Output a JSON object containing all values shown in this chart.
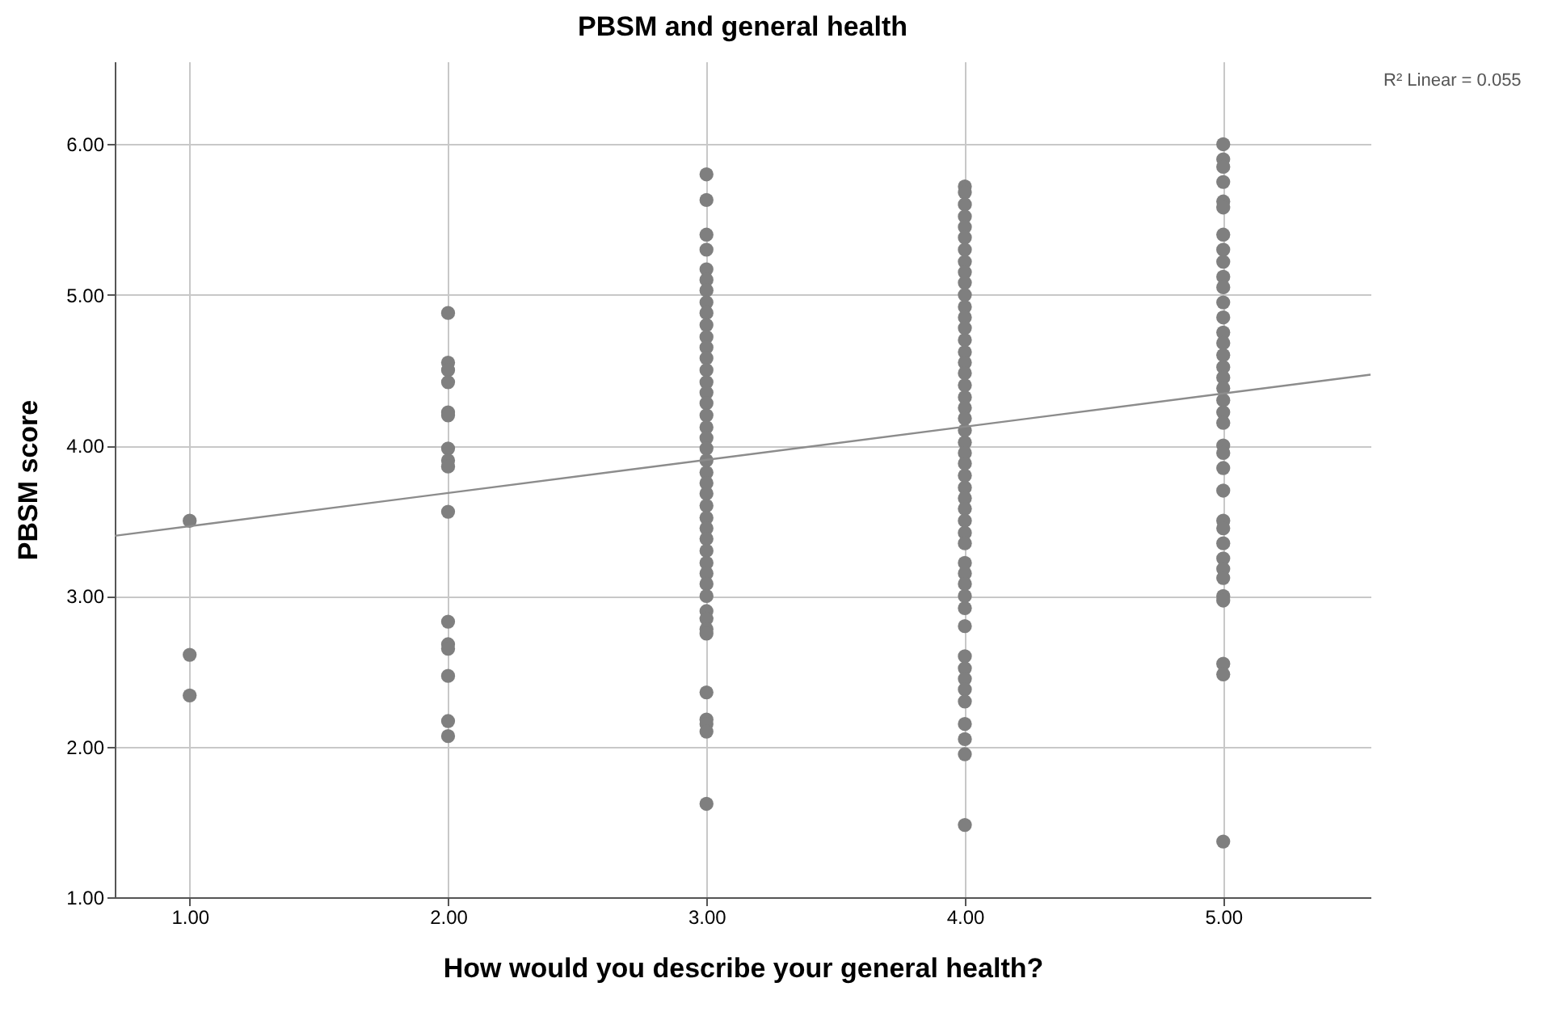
{
  "chart_data": {
    "type": "scatter",
    "title": "PBSM and general health",
    "xlabel": "How would you describe your general health?",
    "ylabel": "PBSM score",
    "annotations": [
      "R² Linear = 0.055"
    ],
    "xlim": [
      0.71,
      5.57
    ],
    "ylim": [
      1,
      6.55
    ],
    "xticks": [
      {
        "value": 1,
        "label": "1.00"
      },
      {
        "value": 2,
        "label": "2.00"
      },
      {
        "value": 3,
        "label": "3.00"
      },
      {
        "value": 4,
        "label": "4.00"
      },
      {
        "value": 5,
        "label": "5.00"
      }
    ],
    "yticks": [
      {
        "value": 1,
        "label": "1.00"
      },
      {
        "value": 2,
        "label": "2.00"
      },
      {
        "value": 3,
        "label": "3.00"
      },
      {
        "value": 4,
        "label": "4.00"
      },
      {
        "value": 5,
        "label": "5.00"
      },
      {
        "value": 6,
        "label": "6.00"
      }
    ],
    "grid": true,
    "series": [
      {
        "color": "#7f7f7f",
        "marker": "circle",
        "x": [
          1,
          1,
          1,
          2,
          2,
          2,
          2,
          2,
          2,
          2,
          2,
          2,
          2,
          2,
          2,
          2,
          2,
          2,
          2,
          3,
          3,
          3,
          3,
          3,
          3,
          3,
          3,
          3,
          3,
          3,
          3,
          3,
          3,
          3,
          3,
          3,
          3,
          3,
          3,
          3,
          3,
          3,
          3,
          3,
          3,
          3,
          3,
          3,
          3,
          3,
          3,
          3,
          3,
          3,
          3,
          3,
          3,
          3,
          3,
          3,
          3,
          3,
          4,
          4,
          4,
          4,
          4,
          4,
          4,
          4,
          4,
          4,
          4,
          4,
          4,
          4,
          4,
          4,
          4,
          4,
          4,
          4,
          4,
          4,
          4,
          4,
          4,
          4,
          4,
          4,
          4,
          4,
          4,
          4,
          4,
          4,
          4,
          4,
          4,
          4,
          4,
          4,
          4,
          4,
          4,
          4,
          4,
          4,
          4,
          4,
          5,
          5,
          5,
          5,
          5,
          5,
          5,
          5,
          5,
          5,
          5,
          5,
          5,
          5,
          5,
          5,
          5,
          5,
          5,
          5,
          5,
          5,
          5,
          5,
          5,
          5,
          5,
          5,
          5,
          5,
          5,
          5,
          5,
          5,
          5,
          5,
          5
        ],
        "values": [
          3.5,
          2.61,
          2.34,
          4.88,
          4.55,
          4.5,
          4.42,
          4.22,
          4.2,
          3.98,
          3.9,
          3.86,
          3.56,
          2.83,
          2.68,
          2.65,
          2.47,
          2.17,
          2.07,
          5.8,
          5.63,
          5.4,
          5.3,
          5.17,
          5.1,
          5.03,
          4.95,
          4.88,
          4.8,
          4.72,
          4.65,
          4.58,
          4.5,
          4.42,
          4.35,
          4.28,
          4.2,
          4.12,
          4.05,
          3.98,
          3.9,
          3.82,
          3.75,
          3.68,
          3.6,
          3.52,
          3.45,
          3.38,
          3.3,
          3.22,
          3.15,
          3.08,
          3.0,
          2.9,
          2.85,
          2.78,
          2.75,
          2.36,
          2.18,
          2.15,
          2.1,
          1.62,
          5.72,
          5.68,
          5.6,
          5.52,
          5.45,
          5.38,
          5.3,
          5.22,
          5.15,
          5.08,
          5.0,
          4.92,
          4.85,
          4.78,
          4.7,
          4.62,
          4.55,
          4.48,
          4.4,
          4.32,
          4.25,
          4.18,
          4.1,
          4.02,
          3.95,
          3.88,
          3.8,
          3.72,
          3.65,
          3.58,
          3.5,
          3.42,
          3.35,
          3.22,
          3.15,
          3.08,
          3.0,
          2.92,
          2.8,
          2.6,
          2.52,
          2.45,
          2.38,
          2.3,
          2.15,
          2.05,
          1.95,
          1.48,
          6.0,
          5.9,
          5.85,
          5.75,
          5.62,
          5.58,
          5.4,
          5.3,
          5.22,
          5.12,
          5.05,
          4.95,
          4.85,
          4.75,
          4.68,
          4.6,
          4.52,
          4.45,
          4.38,
          4.3,
          4.22,
          4.15,
          4.0,
          3.95,
          3.85,
          3.7,
          3.5,
          3.45,
          3.35,
          3.25,
          3.18,
          3.12,
          3.0,
          2.97,
          2.55,
          2.48,
          1.37
        ]
      },
      {
        "type": "line",
        "color": "#8c8c8c",
        "x": [
          0.71,
          5.57
        ],
        "values": [
          3.4,
          4.47
        ]
      }
    ]
  }
}
